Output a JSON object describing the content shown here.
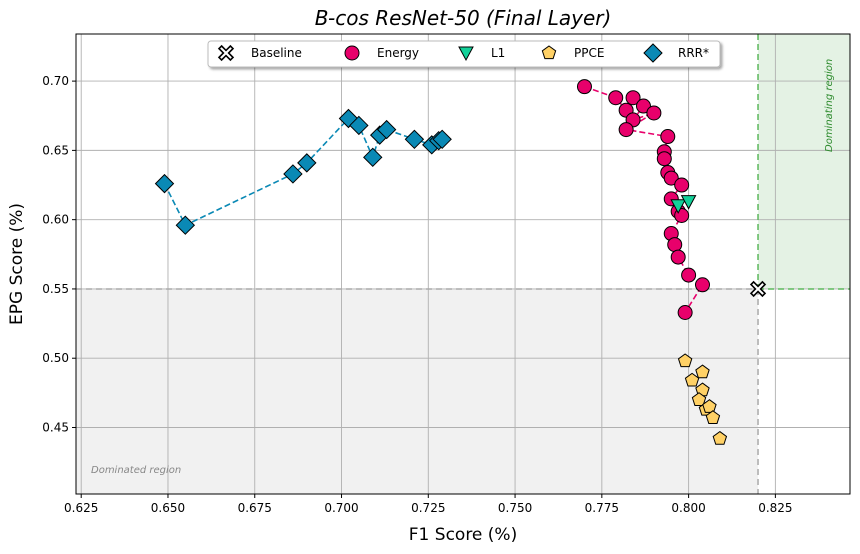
{
  "chart_data": {
    "type": "scatter",
    "title": "B-cos ResNet-50 (Final Layer)",
    "xlabel": "F1 Score (%)",
    "ylabel": "EPG Score (%)",
    "xlim": [
      0.6235,
      0.8465
    ],
    "ylim": [
      0.402,
      0.734
    ],
    "xticks": [
      "0.625",
      "0.650",
      "0.675",
      "0.700",
      "0.725",
      "0.750",
      "0.775",
      "0.800",
      "0.825"
    ],
    "yticks": [
      "0.45",
      "0.50",
      "0.55",
      "0.60",
      "0.65",
      "0.70"
    ],
    "grid": true,
    "legend_placement": "top-center",
    "baseline": {
      "x": 0.82,
      "y": 0.55
    },
    "regions": {
      "dominated_label": "Dominated region",
      "dominating_label": "Dominating region",
      "dominated_color": "#f1f1f1",
      "dominating_color": "#e4f2e4"
    },
    "series": [
      {
        "name": "Baseline",
        "marker": "x-cross",
        "color": "#ffffff",
        "connected": false,
        "points": [
          [
            0.82,
            0.55
          ]
        ]
      },
      {
        "name": "Energy",
        "marker": "circle",
        "color": "#e8006b",
        "connected": true,
        "points": [
          [
            0.77,
            0.696
          ],
          [
            0.779,
            0.688
          ],
          [
            0.782,
            0.679
          ],
          [
            0.784,
            0.688
          ],
          [
            0.787,
            0.682
          ],
          [
            0.784,
            0.672
          ],
          [
            0.79,
            0.677
          ],
          [
            0.782,
            0.665
          ],
          [
            0.794,
            0.66
          ],
          [
            0.793,
            0.649
          ],
          [
            0.793,
            0.644
          ],
          [
            0.794,
            0.634
          ],
          [
            0.795,
            0.63
          ],
          [
            0.798,
            0.625
          ],
          [
            0.795,
            0.615
          ],
          [
            0.797,
            0.606
          ],
          [
            0.798,
            0.603
          ],
          [
            0.795,
            0.59
          ],
          [
            0.796,
            0.582
          ],
          [
            0.797,
            0.573
          ],
          [
            0.8,
            0.56
          ],
          [
            0.804,
            0.553
          ],
          [
            0.799,
            0.533
          ]
        ]
      },
      {
        "name": "L1",
        "marker": "triangle-down",
        "color": "#12d199",
        "connected": false,
        "points": [
          [
            0.797,
            0.61
          ],
          [
            0.8,
            0.613
          ]
        ]
      },
      {
        "name": "PPCE",
        "marker": "pentagon",
        "color": "#ffd166",
        "connected": false,
        "points": [
          [
            0.799,
            0.498
          ],
          [
            0.801,
            0.484
          ],
          [
            0.804,
            0.49
          ],
          [
            0.804,
            0.477
          ],
          [
            0.803,
            0.47
          ],
          [
            0.805,
            0.463
          ],
          [
            0.806,
            0.465
          ],
          [
            0.807,
            0.457
          ],
          [
            0.809,
            0.442
          ]
        ]
      },
      {
        "name": "RRR*",
        "marker": "diamond",
        "color": "#0a89b5",
        "connected": true,
        "points": [
          [
            0.649,
            0.626
          ],
          [
            0.655,
            0.596
          ],
          [
            0.686,
            0.633
          ],
          [
            0.69,
            0.641
          ],
          [
            0.702,
            0.673
          ],
          [
            0.705,
            0.668
          ],
          [
            0.709,
            0.645
          ],
          [
            0.711,
            0.661
          ],
          [
            0.713,
            0.665
          ],
          [
            0.721,
            0.658
          ],
          [
            0.726,
            0.654
          ],
          [
            0.728,
            0.657
          ],
          [
            0.729,
            0.658
          ]
        ]
      }
    ]
  }
}
